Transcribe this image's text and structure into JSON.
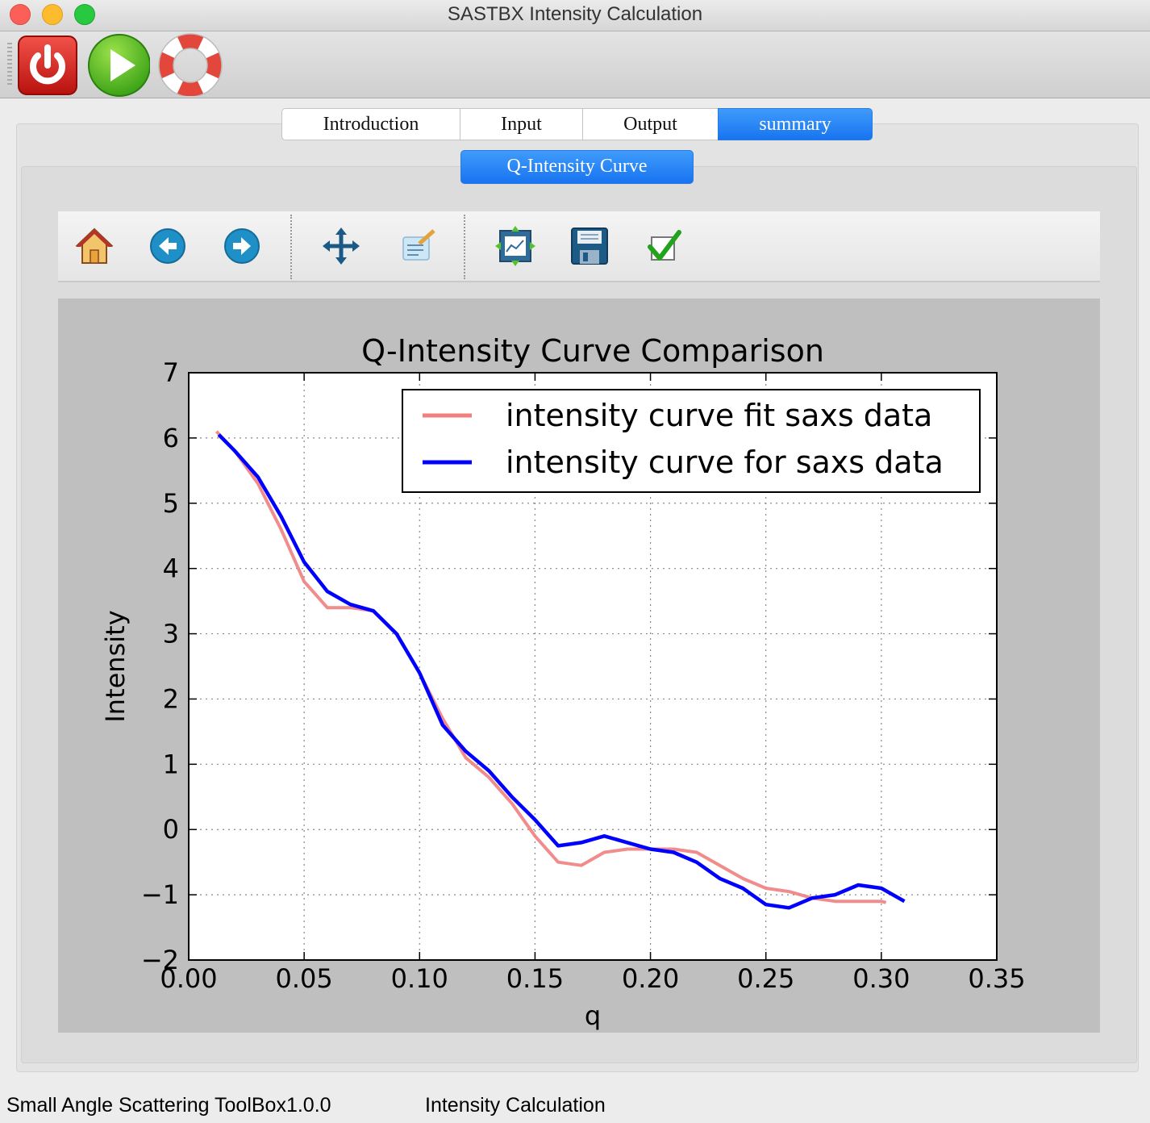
{
  "window": {
    "title": "SASTBX Intensity Calculation"
  },
  "toolbar": {
    "buttons": [
      {
        "name": "power-icon"
      },
      {
        "name": "play-icon"
      },
      {
        "name": "lifebuoy-icon"
      }
    ]
  },
  "tabs": [
    "Introduction",
    "Input",
    "Output",
    "summary"
  ],
  "active_tab": "summary",
  "subtab": "Q-Intensity Curve",
  "plot_toolbar": [
    "home-icon",
    "back-arrow-icon",
    "forward-arrow-icon",
    "pan-move-icon",
    "edit-parameters-icon",
    "configure-subplots-icon",
    "save-disk-icon",
    "checkmark-icon"
  ],
  "chart_data": {
    "type": "line",
    "title": "Q-Intensity Curve Comparison",
    "xlabel": "q",
    "ylabel": "Intensity",
    "xlim": [
      0.0,
      0.35
    ],
    "ylim": [
      -2,
      7
    ],
    "xticks": [
      "0.00",
      "0.05",
      "0.10",
      "0.15",
      "0.20",
      "0.25",
      "0.30",
      "0.35"
    ],
    "yticks": [
      "−2",
      "−1",
      "0",
      "1",
      "2",
      "3",
      "4",
      "5",
      "6",
      "7"
    ],
    "grid": true,
    "legend_position": "top-right",
    "series": [
      {
        "name": "intensity curve fit saxs data",
        "color": "#f08080",
        "x": [
          0.012,
          0.02,
          0.03,
          0.04,
          0.05,
          0.06,
          0.07,
          0.08,
          0.09,
          0.1,
          0.11,
          0.12,
          0.13,
          0.14,
          0.15,
          0.16,
          0.17,
          0.18,
          0.19,
          0.2,
          0.21,
          0.22,
          0.23,
          0.24,
          0.25,
          0.26,
          0.27,
          0.28,
          0.29,
          0.3,
          0.302
        ],
        "y": [
          6.1,
          5.8,
          5.3,
          4.6,
          3.8,
          3.4,
          3.4,
          3.35,
          3.0,
          2.4,
          1.7,
          1.1,
          0.8,
          0.4,
          -0.1,
          -0.5,
          -0.55,
          -0.35,
          -0.3,
          -0.3,
          -0.3,
          -0.35,
          -0.55,
          -0.75,
          -0.9,
          -0.95,
          -1.05,
          -1.1,
          -1.1,
          -1.1,
          -1.12
        ]
      },
      {
        "name": "intensity curve for saxs data",
        "color": "#0000ff",
        "x": [
          0.013,
          0.02,
          0.03,
          0.04,
          0.05,
          0.06,
          0.07,
          0.08,
          0.09,
          0.1,
          0.11,
          0.12,
          0.13,
          0.14,
          0.15,
          0.16,
          0.17,
          0.18,
          0.19,
          0.2,
          0.21,
          0.22,
          0.23,
          0.24,
          0.25,
          0.26,
          0.27,
          0.28,
          0.29,
          0.3,
          0.31
        ],
        "y": [
          6.05,
          5.8,
          5.4,
          4.8,
          4.1,
          3.65,
          3.45,
          3.35,
          3.0,
          2.4,
          1.6,
          1.2,
          0.9,
          0.5,
          0.15,
          -0.25,
          -0.2,
          -0.1,
          -0.2,
          -0.3,
          -0.35,
          -0.5,
          -0.75,
          -0.9,
          -1.15,
          -1.2,
          -1.05,
          -1.0,
          -0.85,
          -0.9,
          -1.1
        ]
      }
    ]
  },
  "status_bar": {
    "left": "Small Angle Scattering ToolBox1.0.0",
    "right": "Intensity Calculation"
  }
}
